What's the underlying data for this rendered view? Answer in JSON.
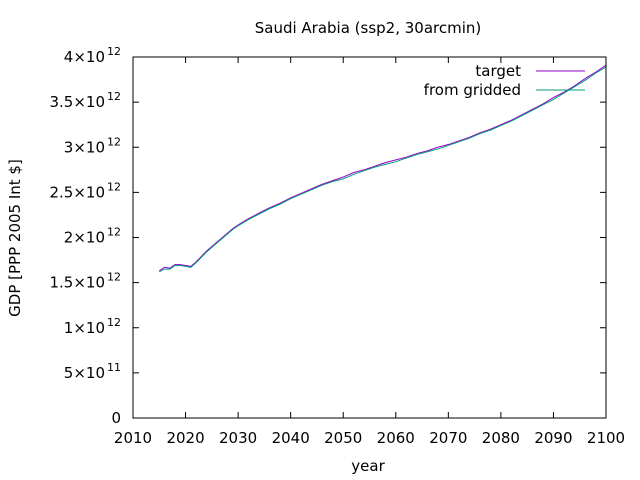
{
  "chart_data": {
    "type": "line",
    "title": "Saudi Arabia (ssp2, 30arcmin)",
    "xlabel": "year",
    "ylabel": "GDP [PPP 2005 Int $]",
    "xlim": [
      2010,
      2100
    ],
    "ylim": [
      0,
      4000000000000
    ],
    "x_ticks": [
      "2010",
      "2020",
      "2030",
      "2040",
      "2050",
      "2060",
      "2070",
      "2080",
      "2090",
      "2100"
    ],
    "y_ticks": [
      {
        "mantissa": "0",
        "exponent": "",
        "value": 0
      },
      {
        "mantissa": "5×10",
        "exponent": "11",
        "value": 500000000000
      },
      {
        "mantissa": "1×10",
        "exponent": "12",
        "value": 1000000000000
      },
      {
        "mantissa": "1.5×10",
        "exponent": "12",
        "value": 1500000000000
      },
      {
        "mantissa": "2×10",
        "exponent": "12",
        "value": 2000000000000
      },
      {
        "mantissa": "2.5×10",
        "exponent": "12",
        "value": 2500000000000
      },
      {
        "mantissa": "3×10",
        "exponent": "12",
        "value": 3000000000000
      },
      {
        "mantissa": "3.5×10",
        "exponent": "12",
        "value": 3500000000000
      },
      {
        "mantissa": "4×10",
        "exponent": "12",
        "value": 4000000000000
      }
    ],
    "grid": false,
    "legend_position": "top-right",
    "x": [
      2015,
      2016,
      2017,
      2018,
      2019,
      2020,
      2021,
      2022,
      2023,
      2024,
      2025,
      2026,
      2027,
      2028,
      2029,
      2030,
      2032,
      2034,
      2036,
      2038,
      2040,
      2042,
      2044,
      2046,
      2048,
      2050,
      2052,
      2054,
      2056,
      2058,
      2060,
      2062,
      2064,
      2066,
      2068,
      2070,
      2072,
      2074,
      2076,
      2078,
      2080,
      2082,
      2084,
      2086,
      2088,
      2090,
      2092,
      2094,
      2096,
      2098,
      2100
    ],
    "series": [
      {
        "name": "target",
        "color": "#9400d3",
        "values": [
          1630000000000.0,
          1670000000000.0,
          1660000000000.0,
          1700000000000.0,
          1700000000000.0,
          1690000000000.0,
          1680000000000.0,
          1730000000000.0,
          1790000000000.0,
          1850000000000.0,
          1900000000000.0,
          1950000000000.0,
          2000000000000.0,
          2050000000000.0,
          2100000000000.0,
          2140000000000.0,
          2210000000000.0,
          2270000000000.0,
          2330000000000.0,
          2380000000000.0,
          2440000000000.0,
          2490000000000.0,
          2540000000000.0,
          2590000000000.0,
          2630000000000.0,
          2670000000000.0,
          2720000000000.0,
          2750000000000.0,
          2790000000000.0,
          2830000000000.0,
          2860000000000.0,
          2890000000000.0,
          2930000000000.0,
          2960000000000.0,
          3000000000000.0,
          3030000000000.0,
          3070000000000.0,
          3110000000000.0,
          3160000000000.0,
          3200000000000.0,
          3250000000000.0,
          3300000000000.0,
          3360000000000.0,
          3420000000000.0,
          3480000000000.0,
          3550000000000.0,
          3610000000000.0,
          3680000000000.0,
          3760000000000.0,
          3830000000000.0,
          3910000000000.0
        ]
      },
      {
        "name": "from gridded",
        "color": "#009e73",
        "values": [
          1620000000000.0,
          1650000000000.0,
          1650000000000.0,
          1690000000000.0,
          1690000000000.0,
          1680000000000.0,
          1670000000000.0,
          1720000000000.0,
          1780000000000.0,
          1840000000000.0,
          1890000000000.0,
          1940000000000.0,
          1990000000000.0,
          2040000000000.0,
          2090000000000.0,
          2130000000000.0,
          2200000000000.0,
          2260000000000.0,
          2320000000000.0,
          2370000000000.0,
          2430000000000.0,
          2480000000000.0,
          2530000000000.0,
          2580000000000.0,
          2620000000000.0,
          2650000000000.0,
          2700000000000.0,
          2740000000000.0,
          2780000000000.0,
          2810000000000.0,
          2840000000000.0,
          2880000000000.0,
          2920000000000.0,
          2950000000000.0,
          2980000000000.0,
          3020000000000.0,
          3060000000000.0,
          3100000000000.0,
          3150000000000.0,
          3190000000000.0,
          3240000000000.0,
          3290000000000.0,
          3350000000000.0,
          3410000000000.0,
          3470000000000.0,
          3530000000000.0,
          3600000000000.0,
          3670000000000.0,
          3740000000000.0,
          3820000000000.0,
          3890000000000.0
        ]
      }
    ]
  }
}
